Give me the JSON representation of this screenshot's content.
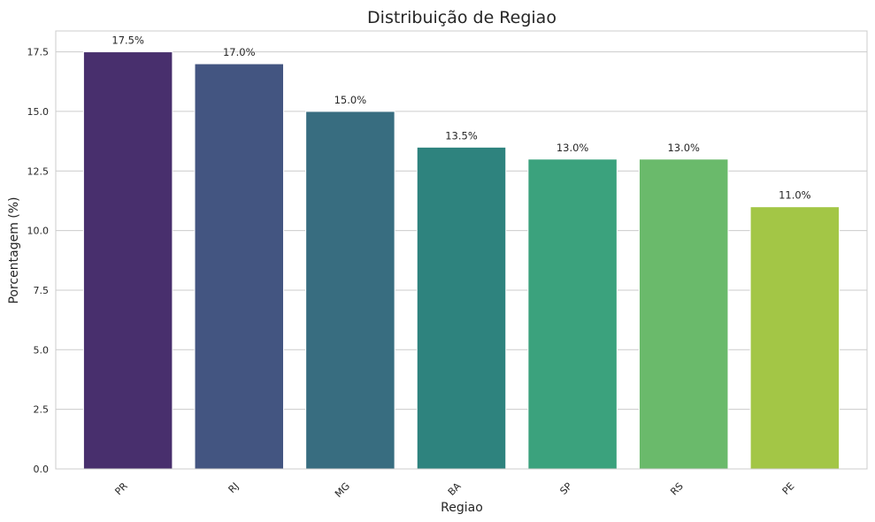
{
  "chart_data": {
    "type": "bar",
    "title": "Distribuição de Regiao",
    "xlabel": "Regiao",
    "ylabel": "Porcentagem (%)",
    "categories": [
      "PR",
      "RJ",
      "MG",
      "BA",
      "SP",
      "RS",
      "PE"
    ],
    "values": [
      17.5,
      17.0,
      15.0,
      13.5,
      13.0,
      13.0,
      11.0
    ],
    "value_labels": [
      "17.5%",
      "17.0%",
      "15.0%",
      "13.5%",
      "13.0%",
      "13.0%",
      "11.0%"
    ],
    "yticks": [
      "0.0",
      "2.5",
      "5.0",
      "7.5",
      "10.0",
      "12.5",
      "15.0",
      "17.5"
    ],
    "ylim": [
      0,
      18.375
    ],
    "grid": "horizontal",
    "colors": [
      "#482f6d",
      "#435581",
      "#386d80",
      "#2e837e",
      "#3ba27d",
      "#6aba6b",
      "#a3c646"
    ],
    "grid_color": "#cccccc",
    "frame_color": "#cccccc"
  }
}
